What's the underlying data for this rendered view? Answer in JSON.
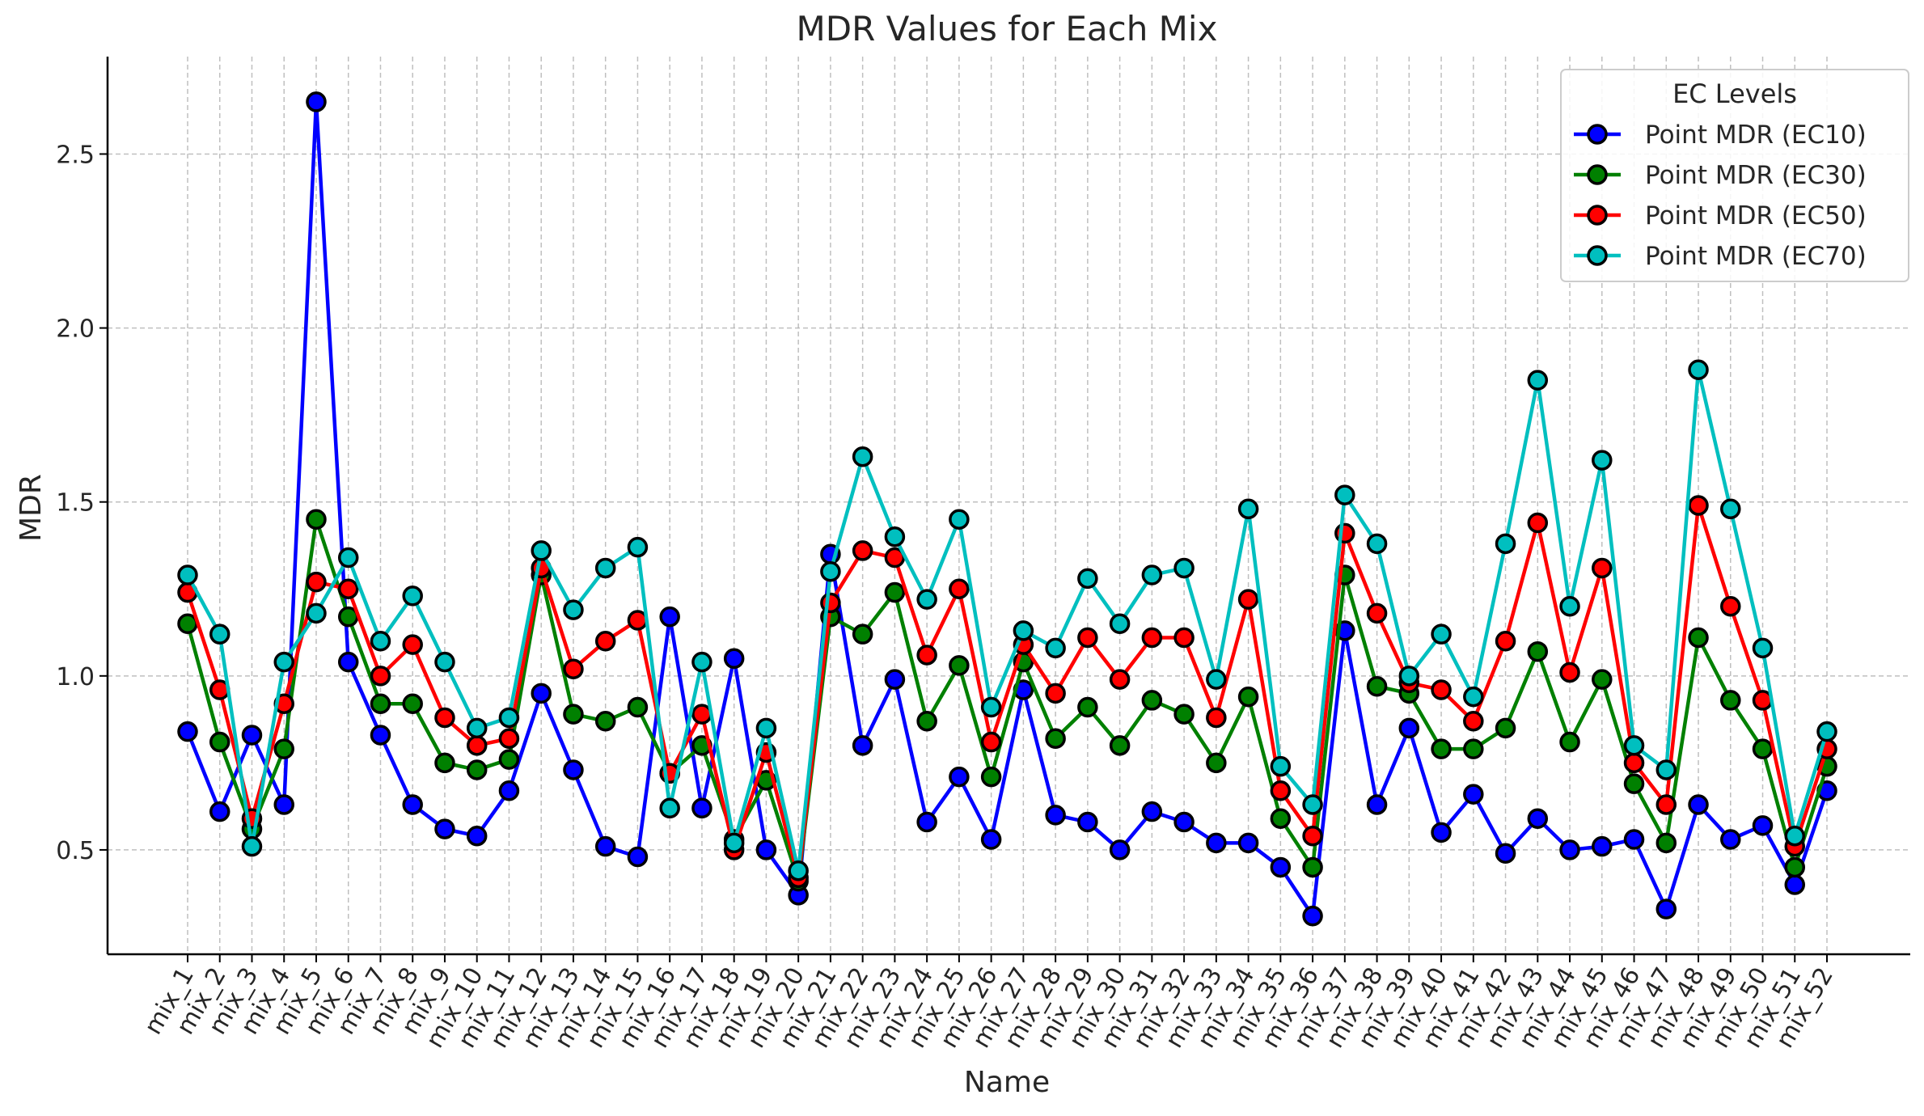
{
  "chart_data": {
    "type": "line",
    "title": "MDR Values for Each Mix",
    "xlabel": "Name",
    "ylabel": "MDR",
    "ylim": [
      0.2,
      2.78
    ],
    "yticks": [
      0.5,
      1.0,
      1.5,
      2.0,
      2.5
    ],
    "ytick_labels": [
      "0.5",
      "1.0",
      "1.5",
      "2.0",
      "2.5"
    ],
    "grid": true,
    "legend": {
      "title": "EC Levels",
      "placement": "top-right"
    },
    "categories": [
      "mix_1",
      "mix_2",
      "mix_3",
      "mix_4",
      "mix_5",
      "mix_6",
      "mix_7",
      "mix_8",
      "mix_9",
      "mix_10",
      "mix_11",
      "mix_12",
      "mix_13",
      "mix_14",
      "mix_15",
      "mix_16",
      "mix_17",
      "mix_18",
      "mix_19",
      "mix_20",
      "mix_21",
      "mix_22",
      "mix_23",
      "mix_24",
      "mix_25",
      "mix_26",
      "mix_27",
      "mix_28",
      "mix_29",
      "mix_30",
      "mix_31",
      "mix_32",
      "mix_33",
      "mix_34",
      "mix_35",
      "mix_36",
      "mix_37",
      "mix_38",
      "mix_39",
      "mix_40",
      "mix_41",
      "mix_42",
      "mix_43",
      "mix_44",
      "mix_45",
      "mix_46",
      "mix_47",
      "mix_48",
      "mix_49",
      "mix_50",
      "mix_51",
      "mix_52"
    ],
    "series": [
      {
        "name": "Point MDR (EC10)",
        "color": "#0000ff",
        "values": [
          0.84,
          0.61,
          0.83,
          0.63,
          2.65,
          1.04,
          0.83,
          0.63,
          0.56,
          0.54,
          0.67,
          0.95,
          0.73,
          0.51,
          0.48,
          1.17,
          0.62,
          1.05,
          0.5,
          0.37,
          1.35,
          0.8,
          0.99,
          0.58,
          0.71,
          0.53,
          0.96,
          0.6,
          0.58,
          0.5,
          0.61,
          0.58,
          0.52,
          0.52,
          0.45,
          0.31,
          1.13,
          0.63,
          0.85,
          0.55,
          0.66,
          0.49,
          0.59,
          0.5,
          0.51,
          0.53,
          0.33,
          0.63,
          0.53,
          0.57,
          0.4,
          0.67
        ]
      },
      {
        "name": "Point MDR (EC30)",
        "color": "#008000",
        "values": [
          1.15,
          0.81,
          0.56,
          0.79,
          1.45,
          1.17,
          0.92,
          0.92,
          0.75,
          0.73,
          0.76,
          1.29,
          0.89,
          0.87,
          0.91,
          0.72,
          0.8,
          0.53,
          0.7,
          0.41,
          1.17,
          1.12,
          1.24,
          0.87,
          1.03,
          0.71,
          1.04,
          0.82,
          0.91,
          0.8,
          0.93,
          0.89,
          0.75,
          0.94,
          0.59,
          0.45,
          1.29,
          0.97,
          0.95,
          0.79,
          0.79,
          0.85,
          1.07,
          0.81,
          0.99,
          0.69,
          0.52,
          1.11,
          0.93,
          0.79,
          0.45,
          0.74
        ]
      },
      {
        "name": "Point MDR (EC50)",
        "color": "#ff0000",
        "values": [
          1.24,
          0.96,
          0.59,
          0.92,
          1.27,
          1.25,
          1.0,
          1.09,
          0.88,
          0.8,
          0.82,
          1.31,
          1.02,
          1.1,
          1.16,
          0.72,
          0.89,
          0.5,
          0.78,
          0.42,
          1.21,
          1.36,
          1.34,
          1.06,
          1.25,
          0.81,
          1.09,
          0.95,
          1.11,
          0.99,
          1.11,
          1.11,
          0.88,
          1.22,
          0.67,
          0.54,
          1.41,
          1.18,
          0.98,
          0.96,
          0.87,
          1.1,
          1.44,
          1.01,
          1.31,
          0.75,
          0.63,
          1.49,
          1.2,
          0.93,
          0.51,
          0.79
        ]
      },
      {
        "name": "Point MDR (EC70)",
        "color": "#00bfbf",
        "values": [
          1.29,
          1.12,
          0.51,
          1.04,
          1.18,
          1.34,
          1.1,
          1.23,
          1.04,
          0.85,
          0.88,
          1.36,
          1.19,
          1.31,
          1.37,
          0.62,
          1.04,
          0.52,
          0.85,
          0.44,
          1.3,
          1.63,
          1.4,
          1.22,
          1.45,
          0.91,
          1.13,
          1.08,
          1.28,
          1.15,
          1.29,
          1.31,
          0.99,
          1.48,
          0.74,
          0.63,
          1.52,
          1.38,
          1.0,
          1.12,
          0.94,
          1.38,
          1.85,
          1.2,
          1.62,
          0.8,
          0.73,
          1.88,
          1.48,
          1.08,
          0.54,
          0.84
        ]
      }
    ]
  }
}
